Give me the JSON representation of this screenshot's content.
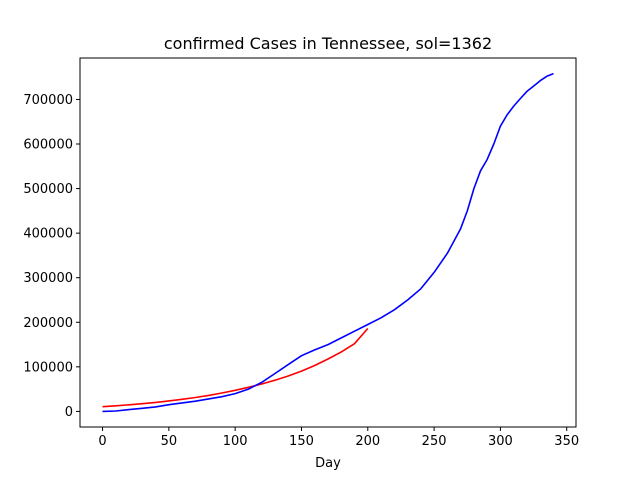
{
  "chart_data": {
    "type": "line",
    "title": "confirmed Cases in Tennessee, sol=1362",
    "xlabel": "Day",
    "ylabel": "",
    "xlim": [
      -17,
      357
    ],
    "ylim": [
      -35000,
      793000
    ],
    "xticks": [
      0,
      50,
      100,
      150,
      200,
      250,
      300,
      350
    ],
    "yticks": [
      0,
      100000,
      200000,
      300000,
      400000,
      500000,
      600000,
      700000
    ],
    "grid": false,
    "series": [
      {
        "color": "#ff0000",
        "x": [
          0,
          10,
          20,
          30,
          40,
          50,
          60,
          70,
          80,
          90,
          100,
          110,
          120,
          130,
          140,
          150,
          160,
          170,
          180,
          190,
          200
        ],
        "y": [
          10500,
          12500,
          14800,
          17300,
          20200,
          23500,
          27100,
          31200,
          35900,
          41200,
          47300,
          54000,
          61500,
          70000,
          79500,
          90500,
          103000,
          117500,
          133500,
          152000,
          186000
        ]
      },
      {
        "color": "#0000ff",
        "x": [
          0,
          10,
          20,
          30,
          40,
          50,
          60,
          70,
          80,
          90,
          100,
          110,
          120,
          130,
          140,
          150,
          160,
          170,
          180,
          190,
          200,
          210,
          220,
          230,
          240,
          250,
          260,
          270,
          275,
          280,
          285,
          290,
          295,
          300,
          305,
          310,
          315,
          320,
          325,
          330,
          335,
          340
        ],
        "y": [
          0,
          1000,
          4000,
          7000,
          10000,
          15000,
          19000,
          23000,
          28000,
          33000,
          40000,
          50000,
          65000,
          85000,
          105000,
          125000,
          138000,
          150000,
          165000,
          180000,
          195000,
          210000,
          228000,
          250000,
          275000,
          312000,
          355000,
          410000,
          450000,
          500000,
          540000,
          565000,
          600000,
          640000,
          665000,
          685000,
          702000,
          718000,
          730000,
          742000,
          752000,
          758000
        ]
      }
    ]
  }
}
